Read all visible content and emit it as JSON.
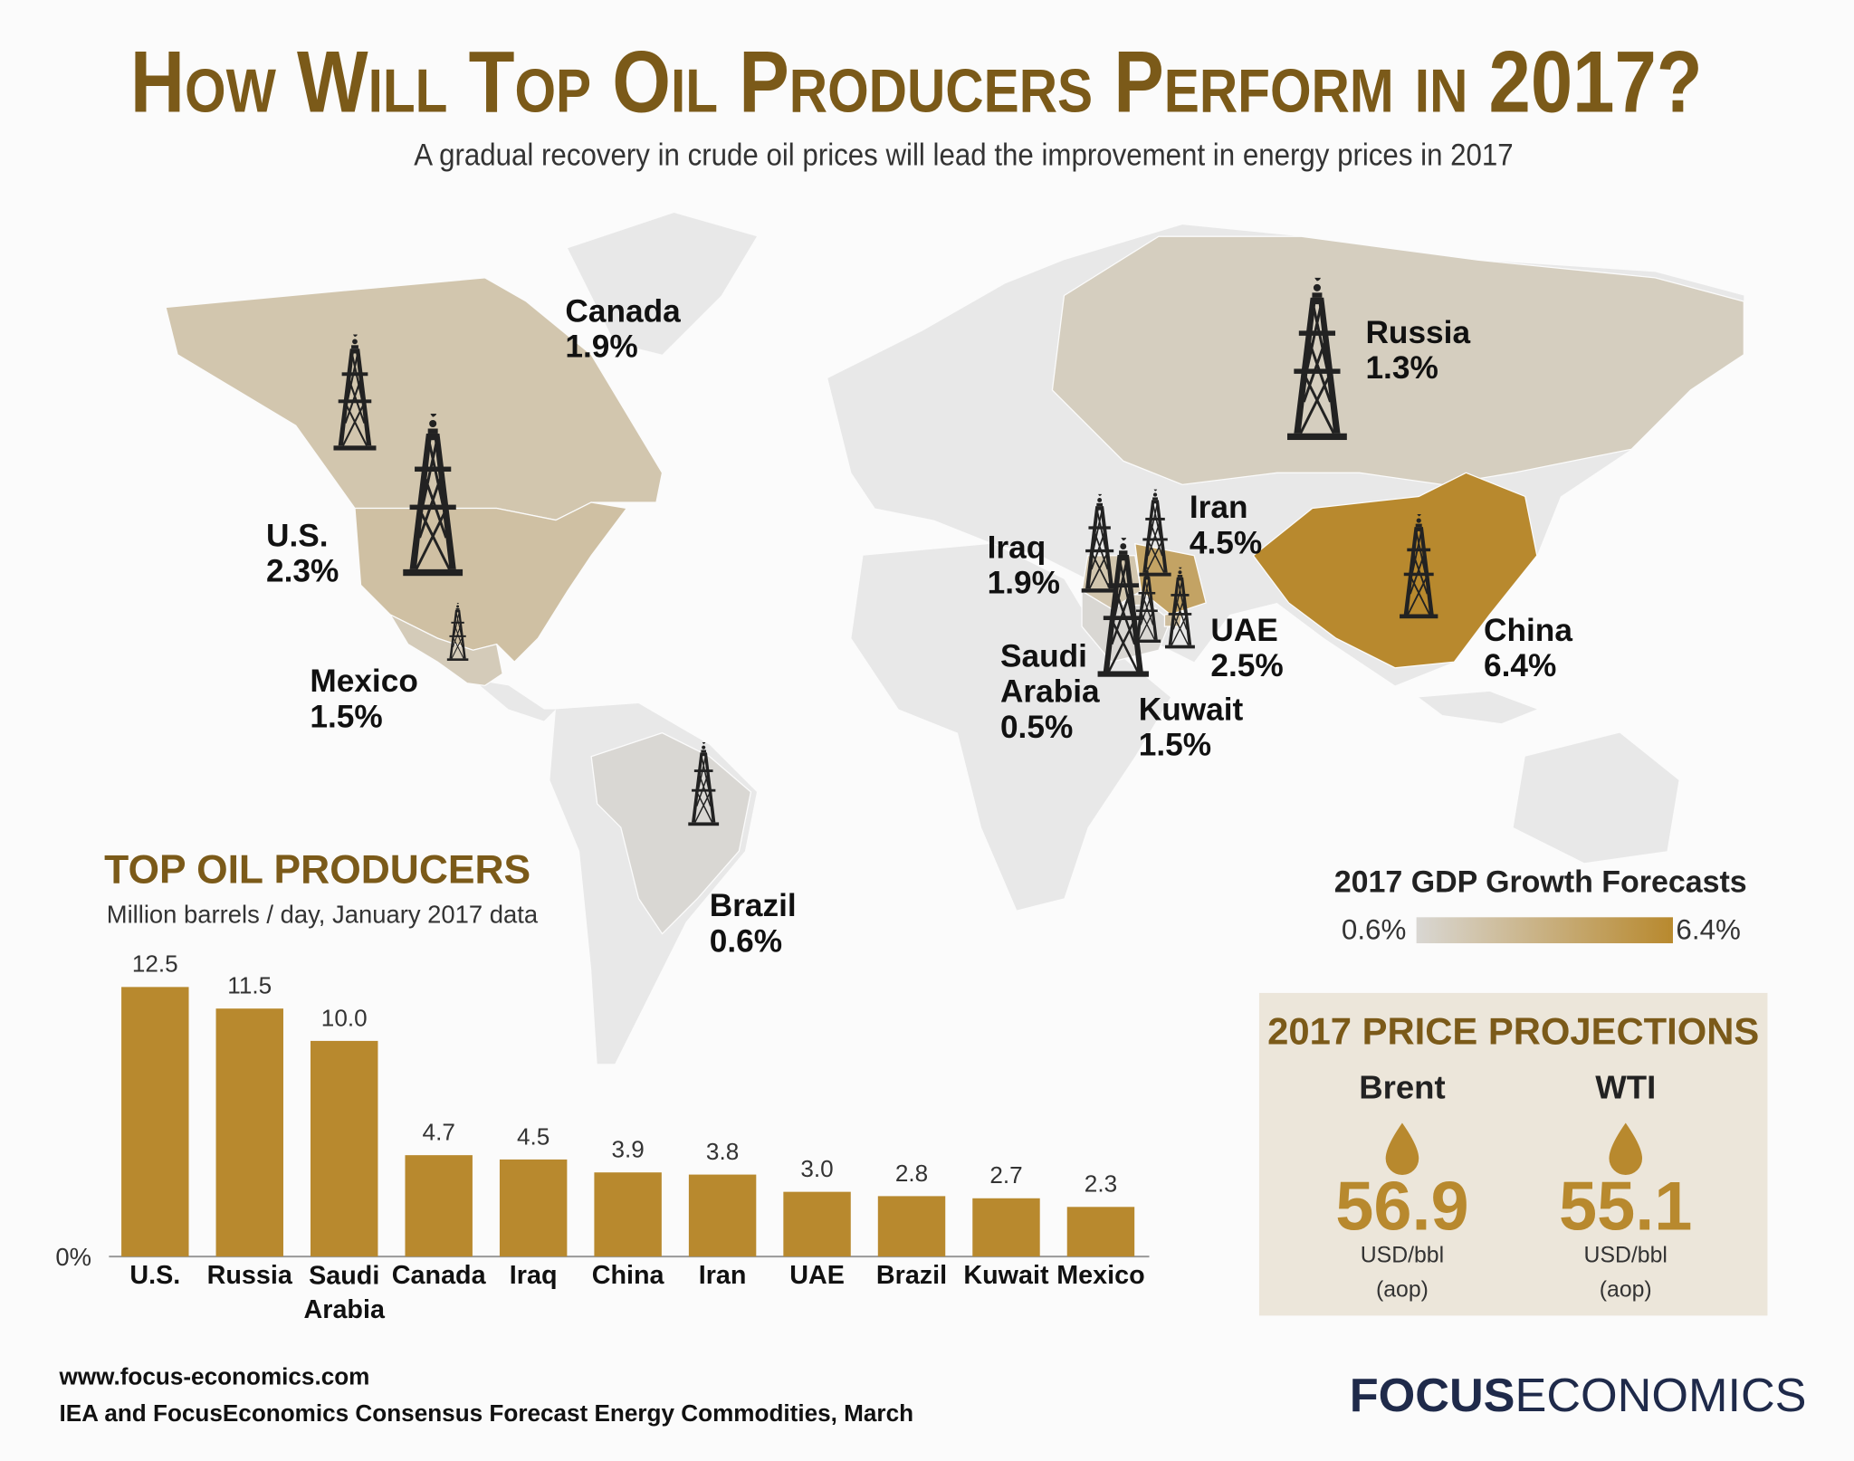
{
  "title": "How Will Top Oil Producers Perform in 2017?",
  "subtitle": "A gradual recovery in crude oil prices will lead the improvement in energy prices in 2017",
  "map": {
    "legend_title": "2017 GDP Growth Forecasts",
    "scale": [
      {
        "value": 0.6,
        "label": "0.6%"
      },
      {
        "value": 6.4,
        "label": "6.4%"
      }
    ],
    "colors": [
      "#d9d7d3",
      "#b8892e"
    ],
    "countries": [
      {
        "name": "Canada",
        "value": 1.9,
        "label": "1.9%"
      },
      {
        "name": "U.S.",
        "value": 2.3,
        "label": "2.3%"
      },
      {
        "name": "Mexico",
        "value": 1.5,
        "label": "1.5%"
      },
      {
        "name": "Brazil",
        "value": 0.6,
        "label": "0.6%"
      },
      {
        "name": "Russia",
        "value": 1.3,
        "label": "1.3%"
      },
      {
        "name": "China",
        "value": 6.4,
        "label": "6.4%"
      },
      {
        "name": "Iraq",
        "value": 1.9,
        "label": "1.9%"
      },
      {
        "name": "Iran",
        "value": 4.5,
        "label": "4.5%"
      },
      {
        "name": "Saudi Arabia",
        "value": 0.5,
        "label": "0.5%"
      },
      {
        "name": "Kuwait",
        "value": 1.5,
        "label": "1.5%"
      },
      {
        "name": "UAE",
        "value": 2.5,
        "label": "2.5%"
      }
    ]
  },
  "chart_data": {
    "type": "bar",
    "title": "TOP OIL PRODUCERS",
    "subtitle": "Million barrels / day, January 2017 data",
    "categories": [
      "U.S.",
      "Russia",
      "Saudi Arabia",
      "Canada",
      "Iraq",
      "China",
      "Iran",
      "UAE",
      "Brazil",
      "Kuwait",
      "Mexico"
    ],
    "values": [
      12.5,
      11.5,
      10.0,
      4.7,
      4.5,
      3.9,
      3.8,
      3.0,
      2.8,
      2.7,
      2.3
    ],
    "value_labels": [
      "12.5",
      "11.5",
      "10.0",
      "4.7",
      "4.5",
      "3.9",
      "3.8",
      "3.0",
      "2.8",
      "2.7",
      "2.3"
    ],
    "color": "#b8892e",
    "ylim": [
      0,
      13
    ],
    "yticks": [
      {
        "value": 0,
        "label": "0%"
      }
    ]
  },
  "price_projections": {
    "title": "2017 PRICE PROJECTIONS",
    "items": [
      {
        "name": "Brent",
        "value": 56.9,
        "unit": "USD/bbl",
        "note": "(aop)"
      },
      {
        "name": "WTI",
        "value": 55.1,
        "unit": "USD/bbl",
        "note": "(aop)"
      }
    ]
  },
  "footer": {
    "url": "www.focus-economics.com",
    "source": "IEA and FocusEconomics Consensus Forecast Energy Commodities, March",
    "logo_bold": "FOCUS",
    "logo_light": "ECONOMICS"
  }
}
